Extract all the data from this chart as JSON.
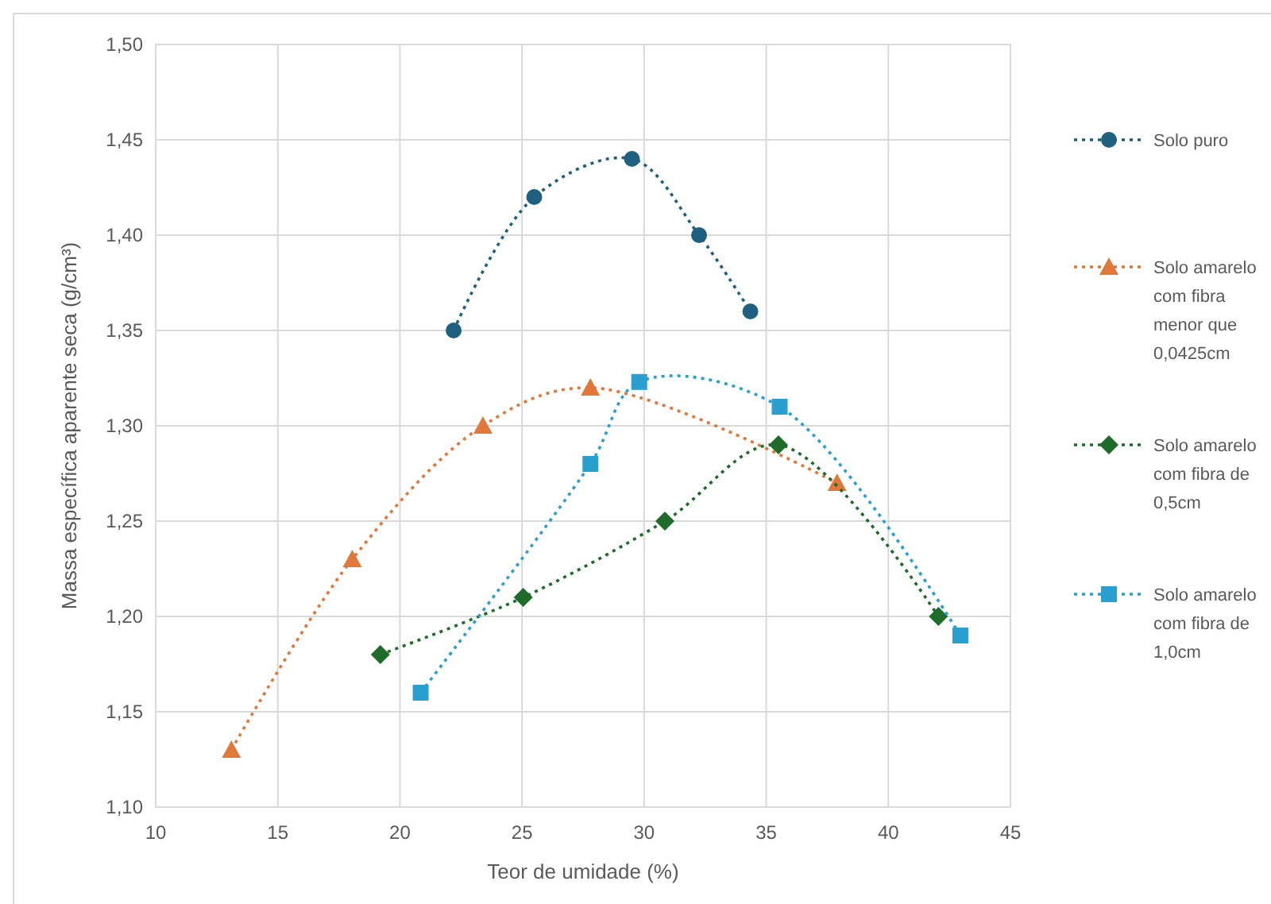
{
  "chart_data": {
    "type": "line",
    "xlabel": "Teor de umidade (%)",
    "ylabel": "Massa específica aparente seca (g/cm³)",
    "xlim": [
      10,
      45
    ],
    "xticks": [
      10,
      15,
      20,
      25,
      30,
      35,
      40,
      45
    ],
    "ylim": [
      1.1,
      1.5
    ],
    "yticks": [
      {
        "value": 1.1,
        "label": "1,10"
      },
      {
        "value": 1.15,
        "label": "1,15"
      },
      {
        "value": 1.2,
        "label": "1,20"
      },
      {
        "value": 1.25,
        "label": "1,25"
      },
      {
        "value": 1.3,
        "label": "1,30"
      },
      {
        "value": 1.35,
        "label": "1,35"
      },
      {
        "value": 1.4,
        "label": "1,40"
      },
      {
        "value": 1.45,
        "label": "1,45"
      },
      {
        "value": 1.5,
        "label": "1,50"
      }
    ],
    "grid": true,
    "legend": "right",
    "line_style": "dotted",
    "series": [
      {
        "name": "Solo puro",
        "color": "#1f5f7f",
        "marker": "circle",
        "x": [
          22.2,
          25.5,
          29.5,
          32.25,
          34.35
        ],
        "values": [
          1.35,
          1.42,
          1.44,
          1.4,
          1.36
        ]
      },
      {
        "name": "Solo amarelo com fibra menor que 0,0425cm",
        "color": "#e0783a",
        "marker": "triangle",
        "x": [
          13.1,
          18.05,
          23.4,
          27.8,
          37.9
        ],
        "values": [
          1.13,
          1.23,
          1.3,
          1.32,
          1.27
        ]
      },
      {
        "name": "Solo amarelo com fibra de 0,5cm",
        "color": "#1e6b2a",
        "marker": "diamond",
        "x": [
          19.2,
          25.05,
          30.85,
          35.5,
          42.05
        ],
        "values": [
          1.18,
          1.21,
          1.25,
          1.29,
          1.2
        ]
      },
      {
        "name": "Solo amarelo com fibra de 1,0cm",
        "color": "#2aa0d0",
        "marker": "square",
        "x": [
          20.85,
          27.8,
          29.8,
          35.55,
          42.95
        ],
        "values": [
          1.16,
          1.28,
          1.323,
          1.31,
          1.19
        ]
      }
    ]
  }
}
